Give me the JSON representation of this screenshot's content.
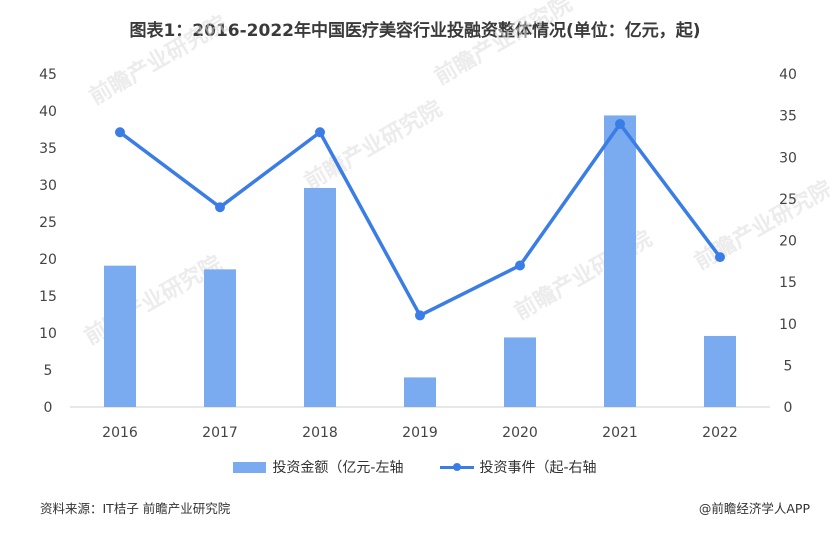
{
  "title": "图表1：2016-2022年中国医疗美容行业投融资整体情况(单位：亿元，起)",
  "watermark": "前瞻产业研究院",
  "legend": {
    "bar": "投资金额（亿元-左轴",
    "line": "投资事件（起-右轴"
  },
  "footer": {
    "source": "资料来源：IT桔子 前瞻产业研究院",
    "brand": "@前瞻经济学人APP"
  },
  "colors": {
    "bar": "#7aaaf0",
    "line": "#3b7de6",
    "axis": "#d0d0d0",
    "text": "#444444"
  },
  "chart_data": {
    "type": "bar+line",
    "categories": [
      "2016",
      "2017",
      "2018",
      "2019",
      "2020",
      "2021",
      "2022"
    ],
    "series": [
      {
        "name": "投资金额（亿元-左轴",
        "type": "bar",
        "axis": "left",
        "values": [
          19.1,
          18.6,
          29.6,
          4.0,
          9.4,
          39.4,
          9.6
        ]
      },
      {
        "name": "投资事件（起-右轴",
        "type": "line",
        "axis": "right",
        "values": [
          33,
          24,
          33,
          11,
          17,
          34,
          18
        ]
      }
    ],
    "y_left": {
      "min": 0,
      "max": 45,
      "ticks": [
        0,
        5,
        10,
        15,
        20,
        25,
        30,
        35,
        40,
        45
      ]
    },
    "y_right": {
      "min": 0,
      "max": 40,
      "ticks": [
        0,
        5,
        10,
        15,
        20,
        25,
        30,
        35,
        40
      ]
    },
    "grid": false,
    "legend_position": "bottom"
  }
}
